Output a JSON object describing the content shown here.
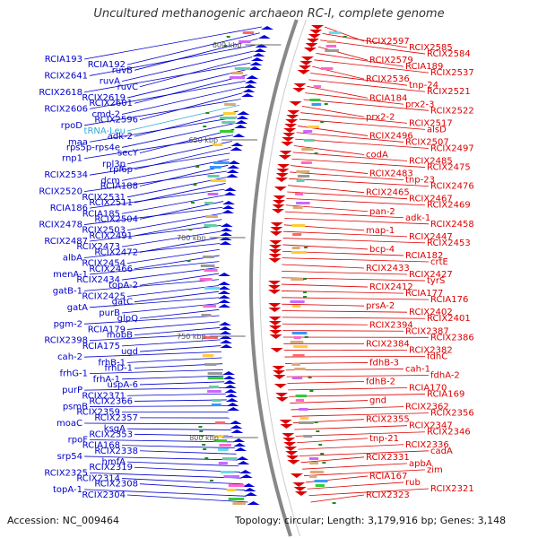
{
  "title": "Uncultured methanogenic archaeon RC-I, complete genome",
  "footer": {
    "accession": "Accession: NC_009464",
    "summary": "Topology: circular; Length: 3,179,916 bp; Genes: 3,148"
  },
  "colors": {
    "left_labels": "#0000cc",
    "right_labels": "#dd0000",
    "trna_label": "#33aadd",
    "backbone": "#888888"
  },
  "ticks": [
    "600 kbp",
    "650 kbp",
    "700 kbp",
    "750 kbp",
    "800 kbp"
  ],
  "left_labels": [
    "RCIA193",
    "RCIA192",
    "ruvB",
    "RCIX2641",
    "ruvA",
    "ruvC",
    "RCIX2618",
    "RCIX2619",
    "RCIX2601",
    "RCIX2606",
    "cmd-2",
    "RCIX2596",
    "rpoD",
    "tRNA-Leu",
    "adk-2",
    "maa",
    "rps5p-rps4e",
    "secY",
    "rnp1",
    "rpl3p",
    "rpl6p",
    "RCIX2534",
    "dcm",
    "RCIA188",
    "RCIX2520",
    "RCIX2531",
    "RCIX2511",
    "RCIA186",
    "RCIA185",
    "RCIX2504",
    "RCIX2478",
    "RCIX2503",
    "RCIX2491",
    "RCIX2487",
    "RCIX2473",
    "RCIX2472",
    "albA",
    "RCIX2454",
    "RCIX2466",
    "menA-1",
    "RCIX2434",
    "topA-2",
    "gatB-1",
    "RCIX2425",
    "gatC",
    "gatA",
    "purB",
    "glpQ",
    "pgm-2",
    "RCIA179",
    "mobB",
    "RCIX2398",
    "RCIA175",
    "ugd",
    "cah-2",
    "frhB-1",
    "frhD-1",
    "frhG-1",
    "frhA-1",
    "uspA-6",
    "purP",
    "RCIX2371",
    "RCIX2366",
    "psmB",
    "RCIX2359",
    "RCIX2357",
    "moaC",
    "ksgA",
    "RCIX2353",
    "rpoF",
    "RCIA168",
    "RCIX2338",
    "srp54",
    "hmfA",
    "RCIX2319",
    "RCIX2325",
    "RCIX2314",
    "RCIX2308",
    "topA-1",
    "RCIX2304"
  ],
  "right_labels": [
    "RCIX2597",
    "RCIX2585",
    "RCIX2584",
    "RCIX2579",
    "RCIA189",
    "RCIX2537",
    "RCIX2536",
    "tnp-24",
    "RCIX2521",
    "RCIA184",
    "prx2-3",
    "RCIX2522",
    "prx2-2",
    "RCIX2517",
    "alsD",
    "RCIX2496",
    "RCIX2507",
    "RCIX2497",
    "codA",
    "RCIX2485",
    "RCIX2475",
    "RCIX2483",
    "tnp-23",
    "RCIX2476",
    "RCIX2465",
    "RCIX2467",
    "RCIX2469",
    "pan-2",
    "adk-1",
    "RCIX2458",
    "map-1",
    "RCIX2447",
    "RCIX2453",
    "bcp-4",
    "RCIA182",
    "crtE",
    "RCIX2433",
    "RCIX2427",
    "tyrS",
    "RCIX2412",
    "RCIA177",
    "RCIA176",
    "prsA-2",
    "RCIX2402",
    "RCIX2401",
    "RCIX2394",
    "RCIX2387",
    "RCIX2386",
    "RCIX2384",
    "RCIX2382",
    "fdhC",
    "fdhB-3",
    "cah-1",
    "fdhA-2",
    "fdhB-2",
    "RCIA170",
    "RCIA169",
    "gnd",
    "RCIX2362",
    "RCIX2356",
    "RCIX2355",
    "RCIX2347",
    "RCIX2346",
    "tnp-21",
    "RCIX2336",
    "cadA",
    "RCIX2331",
    "apbA",
    "zim",
    "RCIA167",
    "rub",
    "RCIX2321",
    "RCIX2323"
  ]
}
